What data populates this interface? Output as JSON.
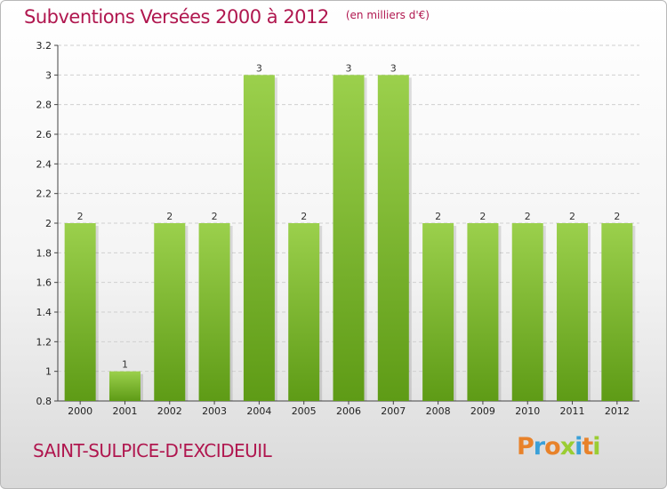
{
  "header": {
    "title": "Subventions Versées 2000 à 2012",
    "unit": "(en milliers d'€)"
  },
  "footer": {
    "commune": "SAINT-SULPICE-D'EXCIDEUIL"
  },
  "logo": {
    "text": "Proxiti",
    "letter_colors": [
      "#e8822a",
      "#3aa0d8",
      "#e8822a",
      "#9acd32",
      "#3aa0d8",
      "#e8822a",
      "#9acd32"
    ]
  },
  "colors": {
    "title": "#b0174f",
    "bar_top": "#9bd04c",
    "bar_bottom": "#5e9b16",
    "grid": "#d0d0d0"
  },
  "chart_data": {
    "type": "bar",
    "title": "Subventions Versées 2000 à 2012",
    "ylabel": "",
    "xlabel": "",
    "categories": [
      "2000",
      "2001",
      "2002",
      "2003",
      "2004",
      "2005",
      "2006",
      "2007",
      "2008",
      "2009",
      "2010",
      "2011",
      "2012"
    ],
    "values": [
      2,
      1,
      2,
      2,
      3,
      2,
      3,
      3,
      2,
      2,
      2,
      2,
      2
    ],
    "data_labels": [
      "2",
      "1",
      "2",
      "2",
      "3",
      "2",
      "3",
      "3",
      "2",
      "2",
      "2",
      "2",
      "2"
    ],
    "ylim": [
      0.8,
      3.2
    ],
    "yticks": [
      0.8,
      1,
      1.2,
      1.4,
      1.6,
      1.8,
      2,
      2.2,
      2.4,
      2.6,
      2.8,
      3,
      3.2
    ],
    "ytick_labels": [
      "0.8",
      "1",
      "1.2",
      "1.4",
      "1.6",
      "1.8",
      "2",
      "2.2",
      "2.4",
      "2.6",
      "2.8",
      "3",
      "3.2"
    ],
    "grid": true,
    "legend": "none"
  }
}
